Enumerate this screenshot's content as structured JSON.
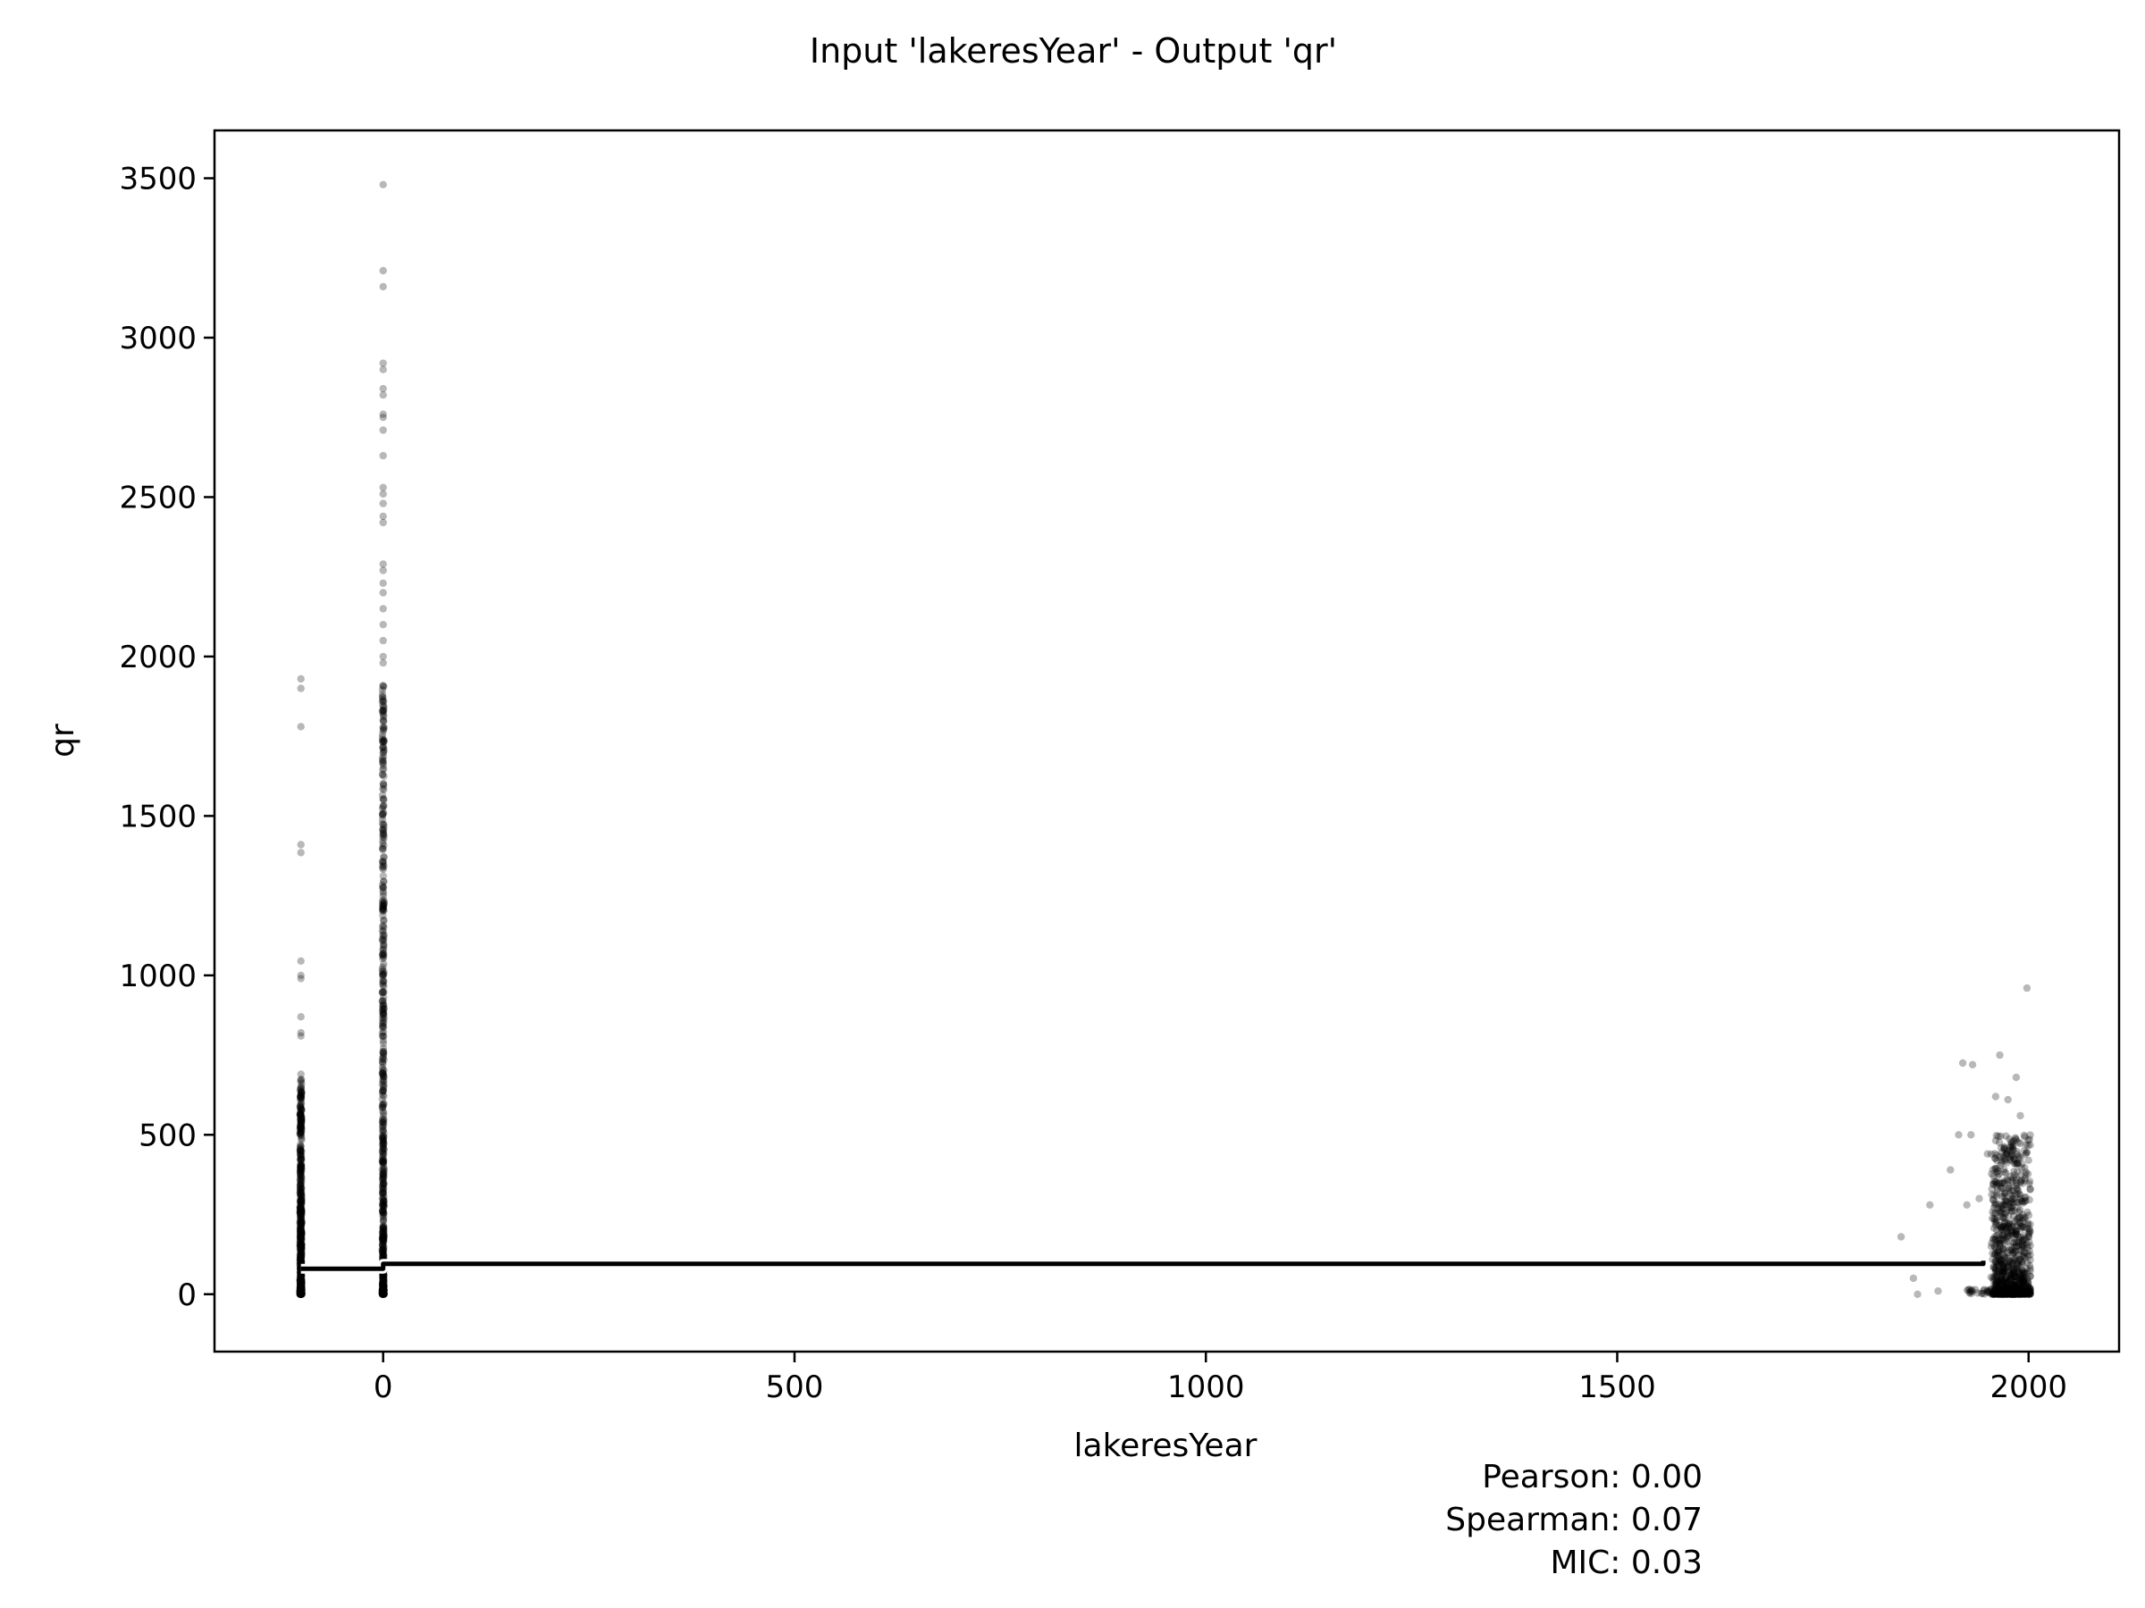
{
  "chart_data": {
    "type": "scatter",
    "title": "Input 'lakeresYear' - Output 'qr'",
    "xlabel": "lakeresYear",
    "ylabel": "qr",
    "xlim": [
      -205,
      2110
    ],
    "ylim": [
      -180,
      3650
    ],
    "xticks": [
      0,
      500,
      1000,
      1500,
      2000
    ],
    "yticks": [
      0,
      500,
      1000,
      1500,
      2000,
      2500,
      3000,
      3500
    ],
    "grid": false,
    "marker_color": "#000000",
    "marker_opacity": 0.28,
    "clusters": [
      {
        "x_center": -100,
        "x_spread": 1,
        "y_max_dense": 680,
        "sparse_points": [
          [
            -100,
            1930
          ],
          [
            -100,
            1900
          ],
          [
            -100,
            1780
          ],
          [
            -100,
            1410
          ],
          [
            -100,
            1385
          ],
          [
            -100,
            1045
          ],
          [
            -100,
            1000
          ],
          [
            -100,
            990
          ],
          [
            -100,
            870
          ],
          [
            -100,
            820
          ],
          [
            -100,
            810
          ],
          [
            -100,
            690
          ]
        ]
      },
      {
        "x_center": 0,
        "x_spread": 1,
        "y_max_dense": 1930,
        "sparse_points": [
          [
            0,
            3480
          ],
          [
            0,
            3210
          ],
          [
            0,
            3160
          ],
          [
            0,
            2920
          ],
          [
            0,
            2900
          ],
          [
            0,
            2840
          ],
          [
            0,
            2820
          ],
          [
            0,
            2760
          ],
          [
            0,
            2750
          ],
          [
            0,
            2710
          ],
          [
            0,
            2630
          ],
          [
            0,
            2530
          ],
          [
            0,
            2510
          ],
          [
            0,
            2480
          ],
          [
            0,
            2440
          ],
          [
            0,
            2420
          ],
          [
            0,
            2290
          ],
          [
            0,
            2270
          ],
          [
            0,
            2230
          ],
          [
            0,
            2200
          ],
          [
            0,
            2150
          ],
          [
            0,
            2100
          ],
          [
            0,
            2050
          ],
          [
            0,
            2000
          ],
          [
            0,
            1980
          ]
        ]
      },
      {
        "x_center": 1970,
        "x_spread": 35,
        "y_max_dense": 500,
        "sparse_points": [
          [
            1998,
            960
          ],
          [
            1965,
            750
          ],
          [
            1985,
            680
          ],
          [
            1920,
            725
          ],
          [
            1932,
            720
          ],
          [
            1960,
            620
          ],
          [
            1975,
            610
          ],
          [
            1915,
            500
          ],
          [
            1930,
            500
          ],
          [
            1990,
            560
          ],
          [
            1995,
            450
          ],
          [
            1845,
            180
          ],
          [
            1860,
            50
          ],
          [
            1865,
            0
          ],
          [
            1880,
            280
          ],
          [
            1890,
            10
          ],
          [
            1905,
            390
          ],
          [
            1940,
            300
          ],
          [
            1950,
            440
          ],
          [
            2000,
            420
          ],
          [
            1990,
            300
          ],
          [
            1925,
            280
          ]
        ]
      }
    ],
    "trend_line": [
      [
        -100,
        80
      ],
      [
        0,
        80
      ],
      [
        0,
        95
      ],
      [
        1945,
        95
      ],
      [
        1945,
        105
      ]
    ],
    "stats": [
      "Pearson: 0.00",
      "Spearman: 0.07",
      "MIC: 0.03"
    ]
  }
}
